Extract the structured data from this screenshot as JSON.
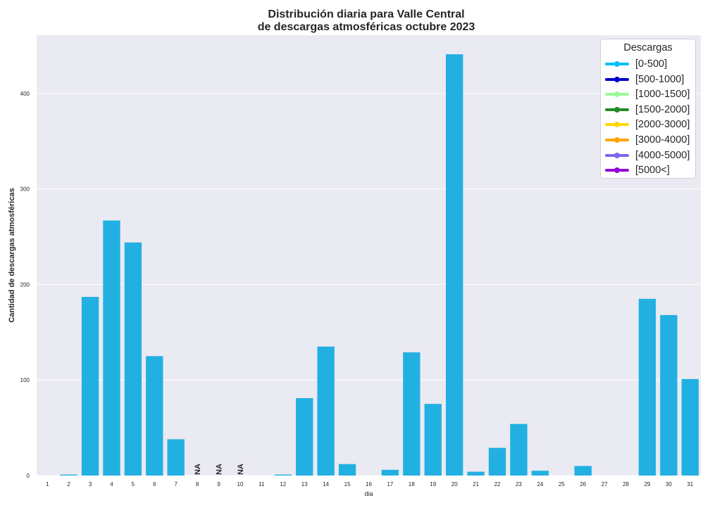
{
  "chart_data": {
    "type": "bar",
    "title": "Distribución diaria para Valle Central\nde descargas atmosféricas octubre 2023",
    "xlabel": "dia",
    "ylabel": "Cantidad de descargas atmosféricas",
    "categories": [
      "1",
      "2",
      "3",
      "4",
      "5",
      "6",
      "7",
      "8",
      "9",
      "10",
      "11",
      "12",
      "13",
      "14",
      "15",
      "16",
      "17",
      "18",
      "19",
      "20",
      "21",
      "22",
      "23",
      "24",
      "25",
      "26",
      "27",
      "28",
      "29",
      "30",
      "31"
    ],
    "values": [
      0,
      1,
      187,
      267,
      244,
      125,
      38,
      null,
      null,
      null,
      0,
      1,
      81,
      135,
      12,
      0,
      6,
      129,
      75,
      441,
      4,
      29,
      54,
      5,
      0,
      10,
      0,
      0,
      185,
      168,
      101
    ],
    "missing_label": "NA",
    "bar_color": "#22b0e2",
    "ylim": [
      0,
      461
    ],
    "yticks": [
      0,
      100,
      200,
      300,
      400
    ],
    "grid": true,
    "background": "#eaeaf2",
    "legend": {
      "title": "Descargas",
      "position": "top-right",
      "items": [
        {
          "label": "[0-500]",
          "color": "#00bfff"
        },
        {
          "label": "[500-1000]",
          "color": "#0000cd"
        },
        {
          "label": "[1000-1500]",
          "color": "#98fb98"
        },
        {
          "label": "[1500-2000]",
          "color": "#228b22"
        },
        {
          "label": "[2000-3000]",
          "color": "#ffd700"
        },
        {
          "label": "[3000-4000]",
          "color": "#ffa500"
        },
        {
          "label": "[4000-5000]",
          "color": "#7b68ee"
        },
        {
          "label": "[5000<]",
          "color": "#9400d3"
        }
      ]
    }
  }
}
